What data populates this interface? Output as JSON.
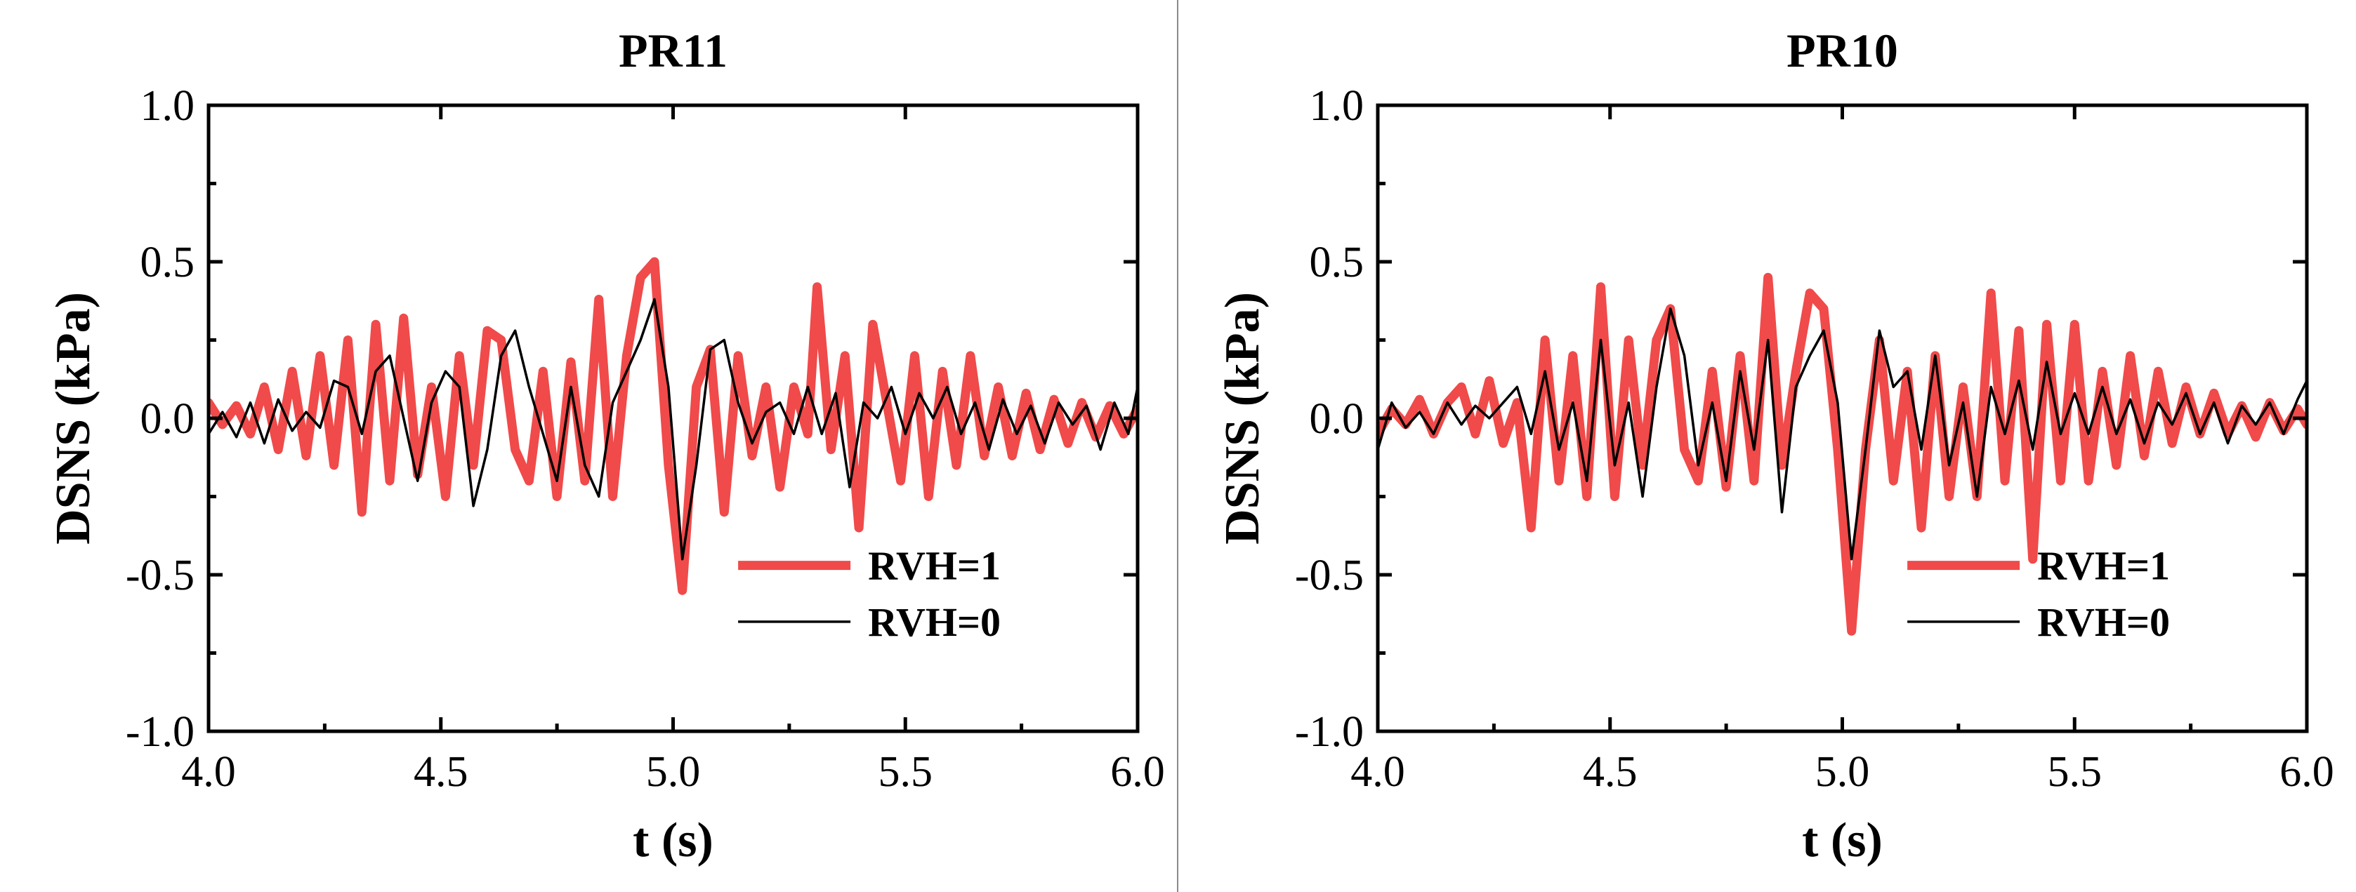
{
  "colors": {
    "rvh1": "#f04a4a",
    "rvh0": "#000000",
    "divider": "#8a8a8a"
  },
  "chart_data": [
    {
      "type": "line",
      "title": "PR11",
      "xlabel": "t (s)",
      "ylabel": "DSNS (kPa)",
      "xlim": [
        4.0,
        6.0
      ],
      "ylim": [
        -1.0,
        1.0
      ],
      "xticks": [
        "4.0",
        "4.5",
        "5.0",
        "5.5",
        "6.0"
      ],
      "yticks": [
        "1.0",
        "0.5",
        "0.0",
        "-0.5",
        "-1.0"
      ],
      "legend_position": "bottom-right",
      "series": [
        {
          "name": "RVH=1",
          "x": [
            4.0,
            4.03,
            4.06,
            4.09,
            4.12,
            4.15,
            4.18,
            4.21,
            4.24,
            4.27,
            4.3,
            4.33,
            4.36,
            4.39,
            4.42,
            4.45,
            4.48,
            4.51,
            4.54,
            4.57,
            4.6,
            4.63,
            4.66,
            4.69,
            4.72,
            4.75,
            4.78,
            4.81,
            4.84,
            4.87,
            4.9,
            4.93,
            4.96,
            4.99,
            5.02,
            5.05,
            5.08,
            5.11,
            5.14,
            5.17,
            5.2,
            5.23,
            5.26,
            5.29,
            5.31,
            5.34,
            5.37,
            5.4,
            5.43,
            5.46,
            5.49,
            5.52,
            5.55,
            5.58,
            5.61,
            5.64,
            5.67,
            5.7,
            5.73,
            5.76,
            5.79,
            5.82,
            5.85,
            5.88,
            5.91,
            5.94,
            5.97,
            6.0
          ],
          "values": [
            0.05,
            -0.02,
            0.04,
            -0.05,
            0.1,
            -0.1,
            0.15,
            -0.12,
            0.2,
            -0.15,
            0.25,
            -0.3,
            0.3,
            -0.2,
            0.32,
            -0.18,
            0.1,
            -0.25,
            0.2,
            -0.15,
            0.28,
            0.25,
            -0.1,
            -0.2,
            0.15,
            -0.25,
            0.18,
            -0.2,
            0.38,
            -0.25,
            0.2,
            0.45,
            0.5,
            -0.15,
            -0.55,
            0.1,
            0.22,
            -0.3,
            0.2,
            -0.12,
            0.1,
            -0.22,
            0.1,
            -0.05,
            0.42,
            -0.1,
            0.2,
            -0.35,
            0.3,
            0.05,
            -0.2,
            0.2,
            -0.25,
            0.15,
            -0.15,
            0.2,
            -0.12,
            0.1,
            -0.12,
            0.08,
            -0.1,
            0.06,
            -0.08,
            0.05,
            -0.06,
            0.04,
            -0.05,
            0.03
          ]
        },
        {
          "name": "RVH=0",
          "x": [
            4.0,
            4.03,
            4.06,
            4.09,
            4.12,
            4.15,
            4.18,
            4.21,
            4.24,
            4.27,
            4.3,
            4.33,
            4.36,
            4.39,
            4.42,
            4.45,
            4.48,
            4.51,
            4.54,
            4.57,
            4.6,
            4.63,
            4.66,
            4.69,
            4.72,
            4.75,
            4.78,
            4.81,
            4.84,
            4.87,
            4.9,
            4.93,
            4.96,
            4.99,
            5.02,
            5.05,
            5.08,
            5.11,
            5.14,
            5.17,
            5.2,
            5.23,
            5.26,
            5.29,
            5.32,
            5.35,
            5.38,
            5.41,
            5.44,
            5.47,
            5.5,
            5.53,
            5.56,
            5.59,
            5.62,
            5.65,
            5.68,
            5.71,
            5.74,
            5.77,
            5.8,
            5.83,
            5.86,
            5.89,
            5.92,
            5.95,
            5.98,
            6.0
          ],
          "values": [
            -0.05,
            0.02,
            -0.06,
            0.05,
            -0.08,
            0.06,
            -0.04,
            0.02,
            -0.03,
            0.12,
            0.1,
            -0.05,
            0.15,
            0.2,
            0.0,
            -0.2,
            0.05,
            0.15,
            0.1,
            -0.28,
            -0.1,
            0.2,
            0.28,
            0.1,
            -0.05,
            -0.2,
            0.1,
            -0.15,
            -0.25,
            0.05,
            0.15,
            0.25,
            0.38,
            0.1,
            -0.45,
            -0.15,
            0.22,
            0.25,
            0.05,
            -0.08,
            0.02,
            0.05,
            -0.05,
            0.1,
            -0.05,
            0.08,
            -0.22,
            0.05,
            0.0,
            0.1,
            -0.05,
            0.08,
            0.0,
            0.1,
            -0.05,
            0.05,
            -0.1,
            0.06,
            -0.05,
            0.04,
            -0.08,
            0.05,
            -0.02,
            0.04,
            -0.1,
            0.05,
            -0.05,
            0.1
          ]
        }
      ]
    },
    {
      "type": "line",
      "title": "PR10",
      "xlabel": "t (s)",
      "ylabel": "DSNS (kPa)",
      "xlim": [
        4.0,
        6.0
      ],
      "ylim": [
        -1.0,
        1.0
      ],
      "xticks": [
        "4.0",
        "4.5",
        "5.0",
        "5.5",
        "6.0"
      ],
      "yticks": [
        "1.0",
        "0.5",
        "0.0",
        "-0.5",
        "-1.0"
      ],
      "legend_position": "bottom-right",
      "series": [
        {
          "name": "RVH=1",
          "x": [
            4.0,
            4.03,
            4.06,
            4.09,
            4.12,
            4.15,
            4.18,
            4.21,
            4.24,
            4.27,
            4.3,
            4.33,
            4.36,
            4.39,
            4.42,
            4.45,
            4.48,
            4.51,
            4.54,
            4.57,
            4.6,
            4.63,
            4.66,
            4.69,
            4.72,
            4.75,
            4.78,
            4.81,
            4.84,
            4.87,
            4.9,
            4.93,
            4.96,
            4.99,
            5.02,
            5.05,
            5.08,
            5.11,
            5.14,
            5.17,
            5.2,
            5.23,
            5.26,
            5.29,
            5.32,
            5.35,
            5.38,
            5.41,
            5.44,
            5.47,
            5.5,
            5.53,
            5.56,
            5.59,
            5.62,
            5.65,
            5.68,
            5.71,
            5.74,
            5.77,
            5.8,
            5.83,
            5.86,
            5.89,
            5.92,
            5.95,
            5.98,
            6.0
          ],
          "values": [
            -0.05,
            0.03,
            -0.02,
            0.06,
            -0.05,
            0.05,
            0.1,
            -0.05,
            0.12,
            -0.08,
            0.05,
            -0.35,
            0.25,
            -0.2,
            0.2,
            -0.25,
            0.42,
            -0.25,
            0.25,
            -0.15,
            0.25,
            0.35,
            -0.1,
            -0.2,
            0.15,
            -0.22,
            0.2,
            -0.2,
            0.45,
            -0.15,
            0.15,
            0.4,
            0.35,
            -0.1,
            -0.68,
            -0.1,
            0.25,
            -0.2,
            0.15,
            -0.35,
            0.2,
            -0.25,
            0.1,
            -0.25,
            0.4,
            -0.2,
            0.28,
            -0.45,
            0.3,
            -0.2,
            0.3,
            -0.2,
            0.15,
            -0.15,
            0.2,
            -0.12,
            0.15,
            -0.08,
            0.1,
            -0.05,
            0.08,
            -0.05,
            0.04,
            -0.06,
            0.05,
            -0.04,
            0.03,
            -0.02
          ]
        },
        {
          "name": "RVH=0",
          "x": [
            4.0,
            4.03,
            4.06,
            4.09,
            4.12,
            4.15,
            4.18,
            4.21,
            4.24,
            4.27,
            4.3,
            4.33,
            4.36,
            4.39,
            4.42,
            4.45,
            4.48,
            4.51,
            4.54,
            4.57,
            4.6,
            4.63,
            4.66,
            4.69,
            4.72,
            4.75,
            4.78,
            4.81,
            4.84,
            4.87,
            4.9,
            4.93,
            4.96,
            4.99,
            5.02,
            5.05,
            5.08,
            5.11,
            5.14,
            5.17,
            5.2,
            5.23,
            5.26,
            5.29,
            5.32,
            5.35,
            5.38,
            5.41,
            5.44,
            5.47,
            5.5,
            5.53,
            5.56,
            5.59,
            5.62,
            5.65,
            5.68,
            5.71,
            5.74,
            5.77,
            5.8,
            5.83,
            5.86,
            5.89,
            5.92,
            5.95,
            5.98,
            6.0
          ],
          "values": [
            -0.1,
            0.05,
            -0.03,
            0.02,
            -0.05,
            0.05,
            -0.02,
            0.04,
            0.0,
            0.05,
            0.1,
            -0.05,
            0.15,
            -0.1,
            0.05,
            -0.2,
            0.25,
            -0.15,
            0.05,
            -0.25,
            0.1,
            0.35,
            0.2,
            -0.15,
            0.05,
            -0.2,
            0.15,
            -0.1,
            0.25,
            -0.3,
            0.1,
            0.2,
            0.28,
            0.05,
            -0.45,
            -0.1,
            0.28,
            0.1,
            0.15,
            -0.1,
            0.2,
            -0.15,
            0.05,
            -0.25,
            0.1,
            -0.05,
            0.12,
            -0.1,
            0.18,
            -0.05,
            0.08,
            -0.05,
            0.1,
            -0.05,
            0.06,
            -0.08,
            0.05,
            -0.02,
            0.08,
            -0.05,
            0.05,
            -0.08,
            0.04,
            -0.02,
            0.05,
            -0.05,
            0.06,
            0.12
          ]
        }
      ]
    }
  ]
}
